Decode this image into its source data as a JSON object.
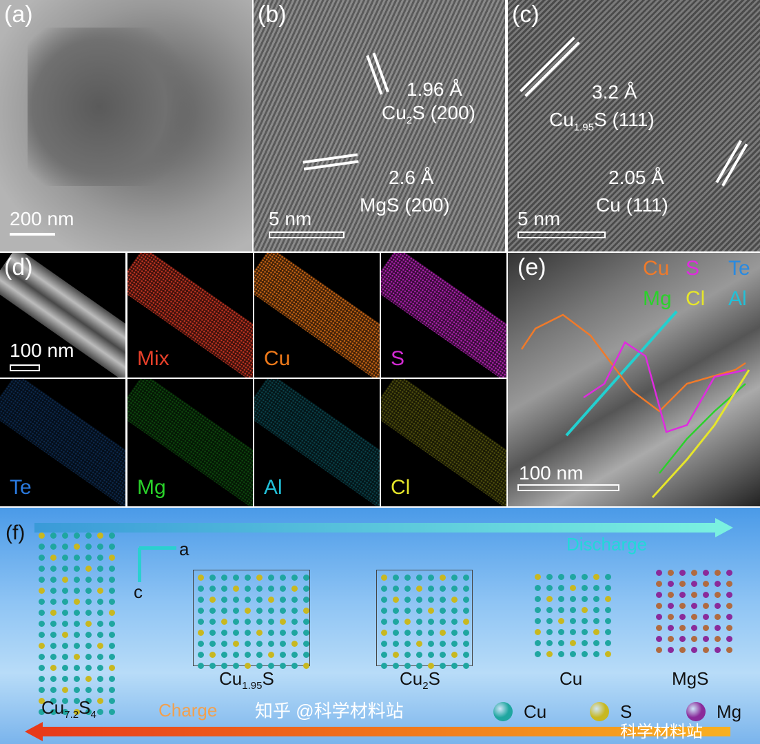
{
  "panels": {
    "a": {
      "label": "(a)",
      "scale": "200 nm"
    },
    "b": {
      "label": "(b)",
      "scale": "5 nm",
      "ann1_d": "1.96 Å",
      "ann1_phase": "Cu",
      "ann1_sub": "2",
      "ann1_rest": "S (200)",
      "ann2_d": "2.6 Å",
      "ann2_phase": "MgS (200)"
    },
    "c": {
      "label": "(c)",
      "scale": "5 nm",
      "ann1_d": "3.2 Å",
      "ann1_phase": "Cu",
      "ann1_sub": "1.95",
      "ann1_rest": "S (111)",
      "ann2_d": "2.05 Å",
      "ann2_phase": "Cu (111)"
    },
    "d": {
      "label": "(d)",
      "scale": "100 nm",
      "maps": [
        {
          "name": "",
          "color": "#ffffff"
        },
        {
          "name": "Mix",
          "color": "#e8402a"
        },
        {
          "name": "Cu",
          "color": "#f07a1a"
        },
        {
          "name": "S",
          "color": "#d22ad2"
        },
        {
          "name": "Te",
          "color": "#2a7ae0"
        },
        {
          "name": "Mg",
          "color": "#2ad22a"
        },
        {
          "name": "Al",
          "color": "#22c0d8"
        },
        {
          "name": "Cl",
          "color": "#e6e62a"
        }
      ]
    },
    "e": {
      "label": "(e)",
      "scale": "100 nm",
      "legend": [
        {
          "name": "Cu",
          "color": "#f07a2a"
        },
        {
          "name": "S",
          "color": "#e02ae0"
        },
        {
          "name": "Te",
          "color": "#2a8ae0"
        },
        {
          "name": "Mg",
          "color": "#2ad22a"
        },
        {
          "name": "Cl",
          "color": "#e6e62a"
        },
        {
          "name": "Al",
          "color": "#22c0d8"
        }
      ]
    },
    "f": {
      "label": "(f)",
      "discharge": "Discharge",
      "charge": "Charge",
      "axis_a": "a",
      "axis_c": "c",
      "structures": [
        {
          "main": "Cu",
          "sub": "7.2",
          "main2": "S",
          "sub2": "4"
        },
        {
          "main": "Cu",
          "sub": "1.95",
          "main2": "S",
          "sub2": ""
        },
        {
          "main": "Cu",
          "sub": "2",
          "main2": "S",
          "sub2": ""
        },
        {
          "main": "Cu",
          "sub": "",
          "main2": "",
          "sub2": ""
        },
        {
          "main": "MgS",
          "sub": "",
          "main2": "",
          "sub2": ""
        }
      ],
      "legend": [
        {
          "name": "Cu",
          "color": "#1fa6a0"
        },
        {
          "name": "S",
          "color": "#c8b820"
        },
        {
          "name": "Mg",
          "color": "#8a2a9a"
        }
      ],
      "watermark1": "知乎 @科学材料站",
      "watermark2": "科学材料站"
    }
  }
}
